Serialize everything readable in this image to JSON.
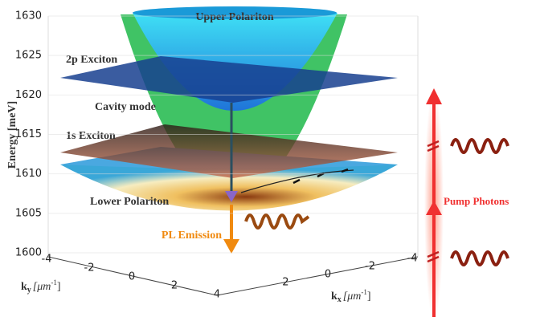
{
  "z_axis": {
    "label": "Energy [meV]",
    "ticks": [
      1600,
      1605,
      1610,
      1615,
      1620,
      1625,
      1630
    ]
  },
  "ky_axis": {
    "main": "k",
    "sub": "y",
    "unit_open": "[μm",
    "unit_exp": "-1",
    "unit_close": "]",
    "ticks": [
      -4,
      -2,
      0,
      2,
      4
    ]
  },
  "kx_axis": {
    "main": "k",
    "sub": "x",
    "unit_open": "[μm",
    "unit_exp": "-1",
    "unit_close": "]",
    "ticks": [
      2,
      0,
      -2,
      -4
    ]
  },
  "labels": {
    "upper_polariton": "Upper Polariton",
    "exciton_2p": "2p Exciton",
    "cavity_mode": "Cavity mode",
    "exciton_1s": "1s Exciton",
    "lower_polariton": "Lower Polariton",
    "pl_emission": "PL Emission",
    "pump_photons": "Pump Photons"
  }
}
